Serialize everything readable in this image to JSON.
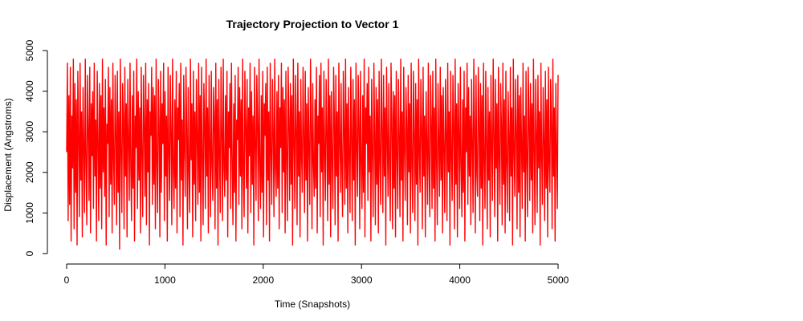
{
  "chart_data": {
    "type": "line",
    "title": "Trajectory Projection to Vector 1",
    "xlabel": "Time (Snapshots)",
    "ylabel": "Displacement (Angstroms)",
    "xlim": [
      0,
      5000
    ],
    "ylim": [
      0,
      5000
    ],
    "x_ticks": [
      0,
      1000,
      2000,
      3000,
      4000,
      5000
    ],
    "y_ticks": [
      0,
      1000,
      2000,
      3000,
      4000,
      5000
    ],
    "grid": false,
    "legend": "none",
    "series": [
      {
        "color": "#ff0000",
        "x_range": [
          0,
          5000
        ],
        "sample_interval": 10,
        "values": [
          2500,
          4700,
          800,
          3900,
          1200,
          4600,
          300,
          3400,
          2100,
          4800,
          600,
          4200,
          1500,
          3800,
          200,
          4500,
          2900,
          900,
          4700,
          1800,
          3500,
          400,
          4100,
          2600,
          1000,
          4800,
          2200,
          700,
          4400,
          3100,
          1300,
          4600,
          500,
          3700,
          2400,
          4000,
          1100,
          4700,
          1900,
          3300,
          300,
          4500,
          2800,
          800,
          4200,
          1600,
          3900,
          600,
          4800,
          2000,
          3600,
          1400,
          4300,
          200,
          3200,
          2700,
          4600,
          900,
          4100,
          1700,
          3800,
          500,
          4700,
          2300,
          1200,
          4400,
          3000,
          700,
          4500,
          1500,
          3500,
          100,
          4800,
          2500,
          1000,
          4200,
          3300,
          600,
          4600,
          1900,
          3700,
          400,
          4300,
          2800,
          1300,
          4700,
          2100,
          800,
          3900,
          1600,
          4500,
          300,
          3400,
          2600,
          4800,
          1100,
          4000,
          1800,
          3600,
          500,
          4600,
          2400,
          900,
          4400,
          3100,
          1400,
          4700,
          700,
          3800,
          2000,
          4200,
          200,
          3500,
          2900,
          4600,
          1200,
          4100,
          1700,
          3900,
          600,
          4800,
          2200,
          1000,
          4300,
          3200,
          400,
          4500,
          1500,
          3700,
          2700,
          4700,
          800,
          4000,
          1900,
          3400,
          300,
          4600,
          2500,
          1300,
          4400,
          3000,
          700,
          4800,
          2100,
          1100,
          3800,
          1600,
          4500,
          500,
          3600,
          2800,
          4200,
          900,
          4700,
          1800,
          3300,
          200,
          4400,
          2600,
          1400,
          4600,
          3100,
          600,
          4100,
          2000,
          1000,
          4800,
          2300,
          3700,
          400,
          4500,
          1700,
          3500,
          800,
          4300,
          2900,
          1200,
          4700,
          1500,
          3900,
          300,
          4600,
          2400,
          700,
          4200,
          3200,
          1100,
          4800,
          1900,
          3600,
          500,
          4400,
          2700,
          900,
          4500,
          2200,
          1300,
          4100,
          3400,
          600,
          4700,
          1600,
          3800,
          200,
          4300,
          2500,
          1000,
          4600,
          3000,
          800,
          4800,
          2100,
          1400,
          3900,
          1800,
          4500,
          400,
          3500,
          2600,
          4200,
          1100,
          4700,
          2300,
          700,
          3700,
          1500,
          4400,
          300,
          3300,
          2800,
          4600,
          1200,
          4100,
          1900,
          3800,
          600,
          4800,
          2000,
          900,
          4500,
          3100,
          1600,
          4300,
          500,
          3600,
          2400,
          4700,
          1000,
          4000,
          1700,
          3400,
          200,
          4600,
          2700,
          1300,
          4400,
          3200,
          800,
          4800,
          2200,
          1100,
          3900,
          1500,
          4500,
          400,
          3700,
          2900,
          4200,
          700,
          4600,
          1800,
          3500,
          300,
          4700,
          2500,
          1200,
          4300,
          3000,
          900,
          4800,
          2100,
          1400,
          4000,
          1600,
          4400,
          600,
          3600,
          2600,
          4700,
          1000,
          4100,
          2000,
          3800,
          500,
          4500,
          2300,
          800,
          4600,
          3300,
          1300,
          4200,
          1700,
          3900,
          200,
          4800,
          2800,
          1100,
          4400,
          3100,
          700,
          4700,
          1900,
          3500,
          400,
          4300,
          2400,
          1500,
          4600,
          2900,
          1000,
          4500,
          1800,
          3700,
          300,
          4100,
          2600,
          1200,
          4800,
          3200,
          600,
          4200,
          2200,
          1400,
          3800,
          1600,
          4600,
          500,
          3400,
          2700,
          4400,
          900,
          4700,
          2000,
          3600,
          200,
          4500,
          2500,
          1300,
          4300,
          3000,
          800,
          4800,
          1700,
          3900,
          400,
          4000,
          2300,
          1100,
          4600,
          3300,
          700,
          4400,
          1900,
          3500,
          300,
          4700,
          2800,
          1500,
          4200,
          2100,
          900,
          4500,
          3100,
          1200,
          4800,
          1600,
          3700,
          500,
          4100,
          2400,
          1000,
          4600,
          2900,
          800,
          4300,
          1800,
          3800,
          200,
          4700,
          2600,
          1400,
          4400,
          3200,
          600,
          4500,
          2200,
          1100,
          3900,
          1500,
          4800,
          400,
          3600,
          2700,
          4200,
          1300,
          4600,
          2000,
          3400,
          300,
          4300,
          2500,
          900,
          4700,
          3000,
          700,
          4100,
          1700,
          3800,
          500,
          4500,
          2300,
          1200,
          4800,
          3100,
          1000,
          4400,
          1900,
          3600,
          200,
          4600,
          2800,
          1400,
          4200,
          2100,
          800,
          4700,
          3300,
          600,
          4000,
          1600,
          3900,
          400,
          4500,
          2400,
          1100,
          4300,
          2900,
          900,
          4800,
          1800,
          3500,
          300,
          4600,
          2600,
          1300,
          4100,
          3200,
          700,
          4400,
          2000,
          3700,
          500,
          4700,
          2200,
          1000,
          4500,
          3000,
          800,
          4200,
          1700,
          3800,
          200,
          4800,
          2500,
          1500,
          4300,
          3100,
          600,
          4600,
          1900,
          3400,
          400,
          4000,
          2700,
          1200,
          4700,
          2100,
          900,
          4400,
          3300,
          1100,
          4500,
          1600,
          3600,
          300,
          4800,
          2300,
          700,
          4200,
          2800,
          1400,
          4600,
          1800,
          3900,
          500,
          4100,
          2600,
          1000,
          4300,
          3000,
          800,
          4700,
          2000,
          3500,
          200,
          4500,
          2400,
          1300,
          4400,
          3200,
          600,
          4800,
          1700,
          3700,
          400,
          4200,
          2900,
          1100,
          4600,
          2200,
          900,
          3800,
          1500,
          4500,
          300,
          3600,
          2500,
          4700,
          1200,
          4100,
          1900,
          3400,
          700,
          4300,
          2700,
          1000,
          4800,
          3100,
          500,
          4400,
          2000,
          1400,
          4600,
          3300,
          800,
          4200,
          1600,
          3900,
          200,
          4700,
          2300,
          1100,
          4500,
          2800,
          600,
          4100,
          1800,
          3500,
          400,
          4400,
          2600,
          1300,
          4800,
          3000,
          900,
          4300,
          2100,
          3700,
          300,
          4600,
          2400,
          1200,
          4200,
          3200,
          700,
          4700,
          1700,
          3800,
          500,
          4500,
          2200,
          1000,
          4000,
          2900,
          800,
          4600,
          1900,
          3600,
          200,
          4800,
          2500,
          1400,
          4300,
          3100,
          600,
          4400,
          1500,
          3900,
          400,
          4100,
          2700,
          1100,
          4700,
          2000,
          3400,
          300,
          4500,
          2300,
          900,
          4600,
          3300,
          1300,
          4200,
          1800,
          3700,
          500,
          4800,
          2600,
          700,
          4300,
          3000,
          1000,
          4400,
          2100,
          3500,
          200,
          4700,
          2400,
          1200,
          4100,
          2800,
          800,
          4500,
          1600,
          3800,
          400,
          4600,
          2200,
          1500,
          4300,
          3200,
          600,
          4800,
          1900,
          3600,
          300,
          4200,
          2500,
          1100,
          4400
        ]
      }
    ]
  }
}
